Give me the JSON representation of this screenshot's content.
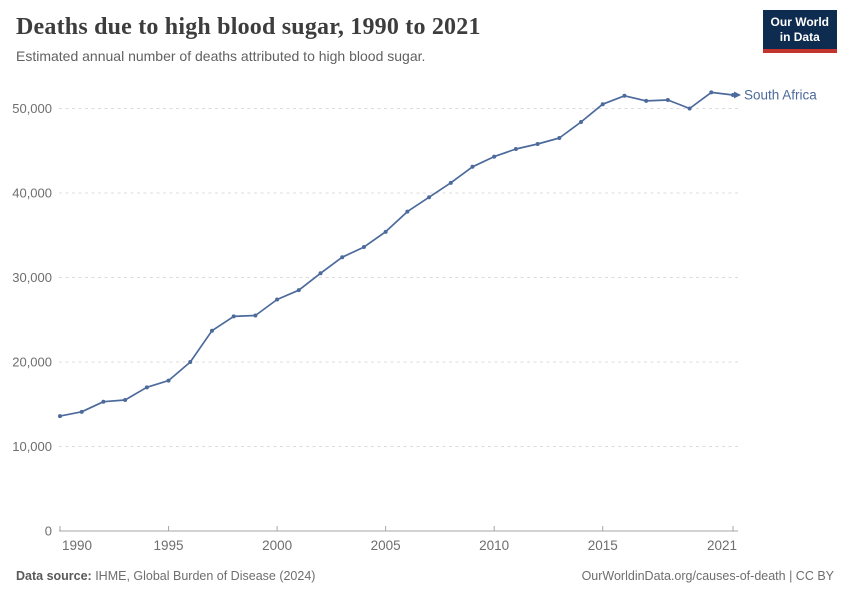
{
  "header": {
    "title": "Deaths due to high blood sugar, 1990 to 2021",
    "subtitle": "Estimated annual number of deaths attributed to high blood sugar."
  },
  "logo": {
    "line1": "Our World",
    "line2": "in Data",
    "bg_color": "#0d2c4f",
    "accent_color": "#c4342f"
  },
  "chart_data": {
    "type": "line",
    "title": "Deaths due to high blood sugar, 1990 to 2021",
    "xlabel": "",
    "ylabel": "",
    "x": [
      1990,
      1991,
      1992,
      1993,
      1994,
      1995,
      1996,
      1997,
      1998,
      1999,
      2000,
      2001,
      2002,
      2003,
      2004,
      2005,
      2006,
      2007,
      2008,
      2009,
      2010,
      2011,
      2012,
      2013,
      2014,
      2015,
      2016,
      2017,
      2018,
      2019,
      2020,
      2021
    ],
    "series": [
      {
        "name": "South Africa",
        "color": "#4C6A9C",
        "values": [
          13600,
          14100,
          15300,
          15500,
          17000,
          17800,
          20000,
          23700,
          25400,
          25500,
          27400,
          28500,
          30500,
          32400,
          33600,
          35400,
          37800,
          39500,
          41200,
          43100,
          44300,
          45200,
          45800,
          46500,
          48400,
          50500,
          51500,
          50900,
          51000,
          50000,
          51900,
          51600
        ]
      }
    ],
    "xticks": [
      1990,
      1995,
      2000,
      2005,
      2010,
      2015,
      2021
    ],
    "yticks": [
      0,
      10000,
      20000,
      30000,
      40000,
      50000
    ],
    "ytick_labels": [
      "0",
      "10,000",
      "20,000",
      "30,000",
      "40,000",
      "50,000"
    ],
    "xlim": [
      1990,
      2021
    ],
    "ylim": [
      0,
      52600
    ],
    "grid": "horizontal-dashed",
    "legend_position": "end-of-line-label",
    "colors": {
      "gridline": "#dcdcdc",
      "axis": "#a5a5a5",
      "tick_label": "#6e6e6e"
    }
  },
  "footer": {
    "source_label": "Data source:",
    "source_text": " IHME, Global Burden of Disease (2024)",
    "credit": "OurWorldinData.org/causes-of-death | CC BY"
  }
}
